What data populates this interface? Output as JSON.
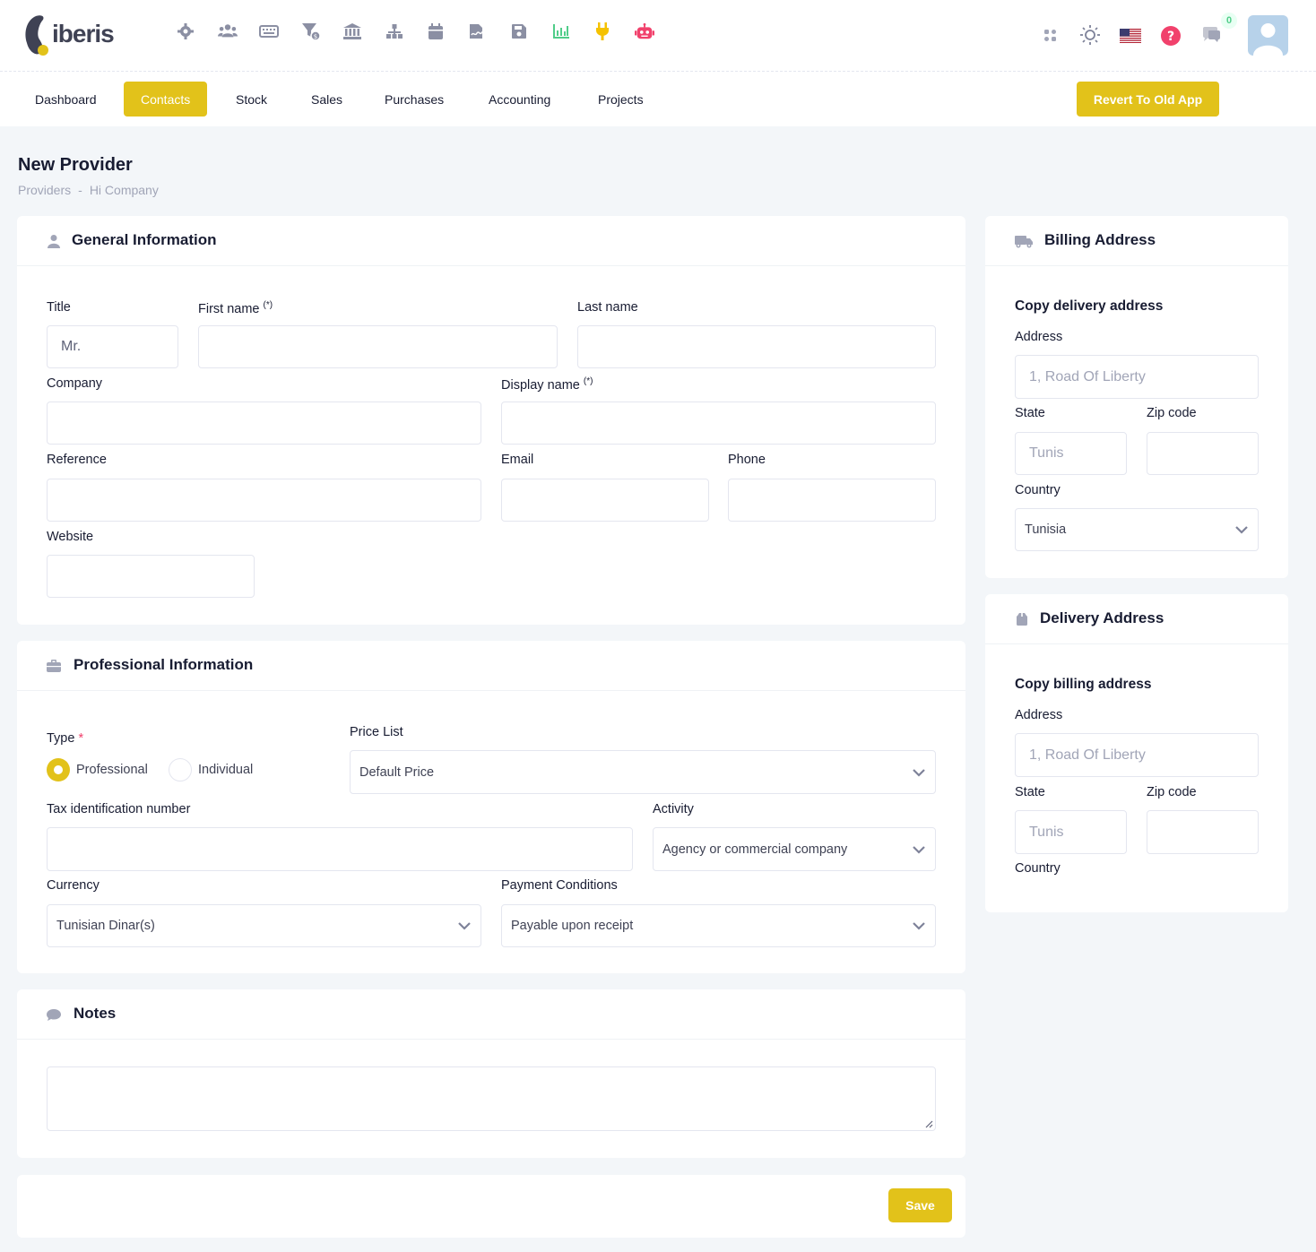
{
  "brand": {
    "name": "iberis"
  },
  "header": {
    "tool_icons": [
      "gear-icon",
      "users-icon",
      "keyboard-icon",
      "filter-money-icon",
      "bank-icon",
      "sitemap-icon",
      "calendar-icon",
      "signature-icon",
      "save-icon",
      "chart-icon",
      "plug-icon",
      "robot-icon"
    ],
    "notification_count": "0",
    "icons": [
      "apps-icon",
      "theme-sun-icon",
      "us-flag-icon",
      "help-icon",
      "chat-icon",
      "user-avatar"
    ]
  },
  "nav": {
    "items": [
      "Dashboard",
      "Contacts",
      "Stock",
      "Sales",
      "Purchases",
      "Accounting",
      "Projects"
    ],
    "active": "Contacts",
    "revert_label": "Revert To Old App"
  },
  "page": {
    "title": "New Provider",
    "breadcrumb": [
      "Providers",
      "Hi Company"
    ],
    "breadcrumb_sep": "-"
  },
  "general": {
    "title": "General Information",
    "title_label": "Title",
    "title_value": "Mr.",
    "first_name_label": "First name",
    "required_marker": "(*)",
    "last_name_label": "Last name",
    "company_label": "Company",
    "display_name_label": "Display name",
    "reference_label": "Reference",
    "email_label": "Email",
    "phone_label": "Phone",
    "website_label": "Website"
  },
  "professional": {
    "title": "Professional Information",
    "type_label": "Type",
    "type_required": "*",
    "type_options": [
      "Professional",
      "Individual"
    ],
    "type_selected": "Professional",
    "price_list_label": "Price List",
    "price_list_value": "Default Price",
    "tax_label": "Tax identification number",
    "activity_label": "Activity",
    "activity_value": "Agency or commercial company",
    "currency_label": "Currency",
    "currency_value": "Tunisian Dinar(s)",
    "payment_label": "Payment Conditions",
    "payment_value": "Payable upon receipt"
  },
  "notes": {
    "title": "Notes"
  },
  "billing": {
    "title": "Billing Address",
    "copy_label": "Copy delivery address",
    "address_label": "Address",
    "address_placeholder": "1, Road Of Liberty",
    "state_label": "State",
    "state_placeholder": "Tunis",
    "zip_label": "Zip code",
    "country_label": "Country",
    "country_value": "Tunisia"
  },
  "delivery": {
    "title": "Delivery Address",
    "copy_label": "Copy billing address",
    "address_label": "Address",
    "address_placeholder": "1, Road Of Liberty",
    "state_label": "State",
    "state_placeholder": "Tunis",
    "zip_label": "Zip code",
    "country_label": "Country"
  },
  "actions": {
    "save_label": "Save"
  },
  "colors": {
    "accent": "#e2c21a",
    "required": "#f1416c",
    "success": "#50cd89"
  }
}
